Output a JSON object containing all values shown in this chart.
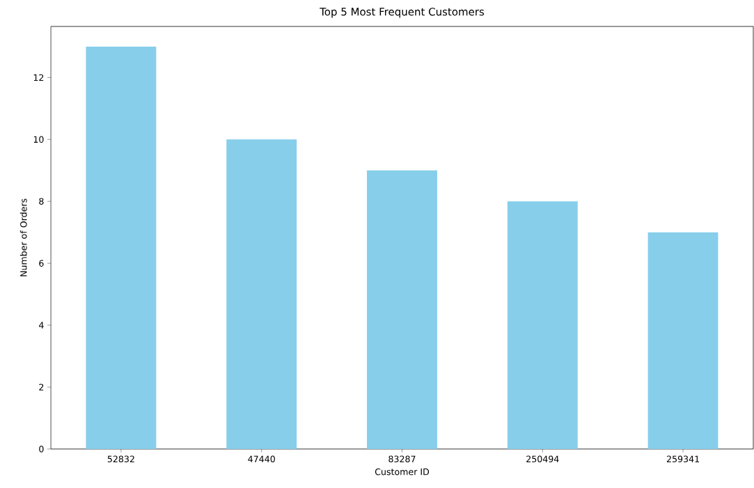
{
  "chart_data": {
    "type": "bar",
    "title": "Top 5 Most Frequent Customers",
    "xlabel": "Customer ID",
    "ylabel": "Number of Orders",
    "categories": [
      "52832",
      "47440",
      "83287",
      "250494",
      "259341"
    ],
    "values": [
      13,
      10,
      9,
      8,
      7
    ],
    "color": "#87ceeb",
    "ylim": [
      0,
      13.65
    ],
    "yticks": [
      0,
      2,
      4,
      6,
      8,
      10,
      12
    ],
    "grid": false
  }
}
